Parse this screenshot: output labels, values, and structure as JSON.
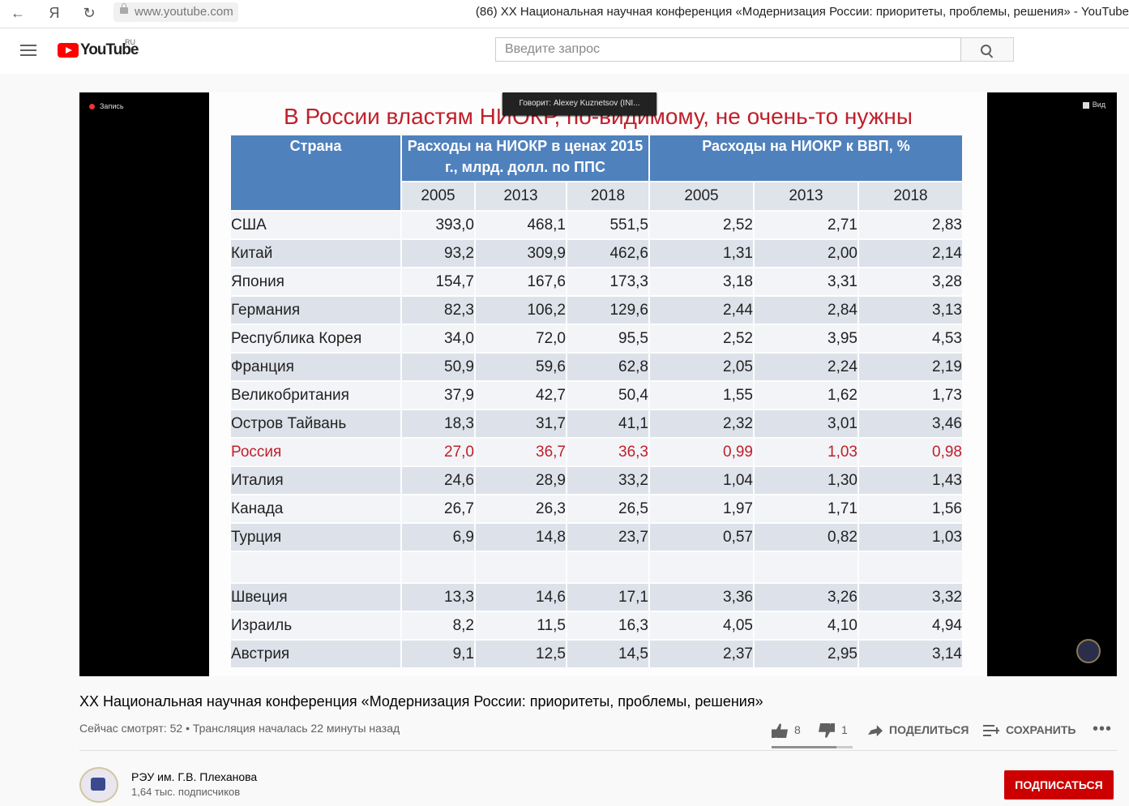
{
  "browser": {
    "url": "www.youtube.com",
    "tab_title": "(86) XX Национальная научная конференция «Модернизация России: приоритеты, проблемы, решения» - YouTube",
    "back_glyph": "←",
    "yandex_glyph": "Я",
    "reload_glyph": "↻"
  },
  "header": {
    "logo_text": "YouTube",
    "logo_region": "RU",
    "search_placeholder": "Введите запрос"
  },
  "player": {
    "record_label": "Запись",
    "view_label": "Вид",
    "speaker_label": "Говорит: Alexey Kuznetsov (INI..."
  },
  "slide": {
    "title": "В России властям НИОКР, по-видимому, не очень-то нужны",
    "header_country": "Страна",
    "header_group1": "Расходы на НИОКР в ценах 2015 г., млрд. долл. по ППС",
    "header_group2": "Расходы на НИОКР к ВВП, %",
    "years": [
      "2005",
      "2013",
      "2018",
      "2005",
      "2013",
      "2018"
    ]
  },
  "table": {
    "rows": [
      {
        "country": "США",
        "v": [
          "393,0",
          "468,1",
          "551,5",
          "2,52",
          "2,71",
          "2,83"
        ]
      },
      {
        "country": "Китай",
        "v": [
          "93,2",
          "309,9",
          "462,6",
          "1,31",
          "2,00",
          "2,14"
        ]
      },
      {
        "country": "Япония",
        "v": [
          "154,7",
          "167,6",
          "173,3",
          "3,18",
          "3,31",
          "3,28"
        ]
      },
      {
        "country": "Германия",
        "v": [
          "82,3",
          "106,2",
          "129,6",
          "2,44",
          "2,84",
          "3,13"
        ]
      },
      {
        "country": "Республика Корея",
        "v": [
          "34,0",
          "72,0",
          "95,5",
          "2,52",
          "3,95",
          "4,53"
        ]
      },
      {
        "country": "Франция",
        "v": [
          "50,9",
          "59,6",
          "62,8",
          "2,05",
          "2,24",
          "2,19"
        ]
      },
      {
        "country": "Великобритания",
        "v": [
          "37,9",
          "42,7",
          "50,4",
          "1,55",
          "1,62",
          "1,73"
        ]
      },
      {
        "country": "Остров Тайвань",
        "v": [
          "18,3",
          "31,7",
          "41,1",
          "2,32",
          "3,01",
          "3,46"
        ]
      },
      {
        "country": "Россия",
        "v": [
          "27,0",
          "36,7",
          "36,3",
          "0,99",
          "1,03",
          "0,98"
        ]
      },
      {
        "country": "Италия",
        "v": [
          "24,6",
          "28,9",
          "33,2",
          "1,04",
          "1,30",
          "1,43"
        ]
      },
      {
        "country": "Канада",
        "v": [
          "26,7",
          "26,3",
          "26,5",
          "1,97",
          "1,71",
          "1,56"
        ]
      },
      {
        "country": "Турция",
        "v": [
          "6,9",
          "14,8",
          "23,7",
          "0,57",
          "0,82",
          "1,03"
        ]
      },
      {
        "country": "",
        "v": [
          "",
          "",
          "",
          "",
          "",
          ""
        ]
      },
      {
        "country": "Швеция",
        "v": [
          "13,3",
          "14,6",
          "17,1",
          "3,36",
          "3,26",
          "3,32"
        ]
      },
      {
        "country": "Израиль",
        "v": [
          "8,2",
          "11,5",
          "16,3",
          "4,05",
          "4,10",
          "4,94"
        ]
      },
      {
        "country": "Австрия",
        "v": [
          "9,1",
          "12,5",
          "14,5",
          "2,37",
          "2,95",
          "3,14"
        ]
      }
    ]
  },
  "video": {
    "title": "XX Национальная научная конференция «Модернизация России: приоритеты, проблемы, решения»",
    "meta": "Сейчас смотрят: 52 • Трансляция началась 22 минуты назад",
    "likes": "8",
    "dislikes": "1",
    "share_label": "ПОДЕЛИТЬСЯ",
    "save_label": "СОХРАНИТЬ",
    "more_glyph": "•••",
    "like_ratio": 0.8
  },
  "channel": {
    "name": "РЭУ им. Г.В. Плеханова",
    "subscribers": "1,64 тыс. подписчиков",
    "subscribe_label": "ПОДПИСАТЬСЯ"
  },
  "colors": {
    "accent_red": "#cc0000",
    "table_header_blue": "#4f81bd",
    "slide_title_red": "#c0202b"
  }
}
